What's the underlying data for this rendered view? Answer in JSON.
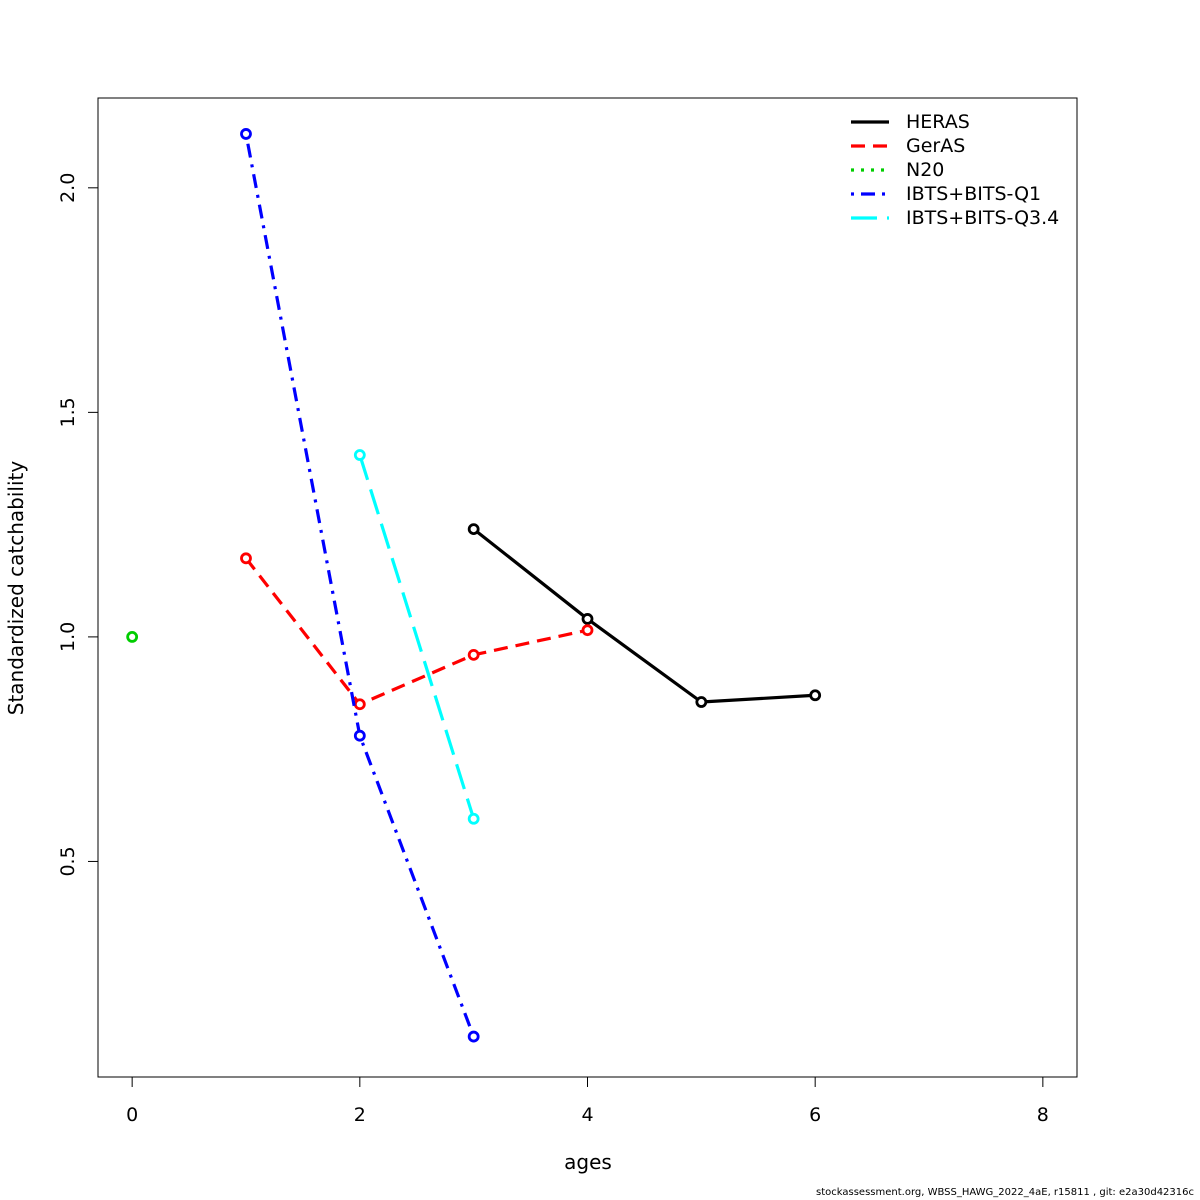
{
  "chart_data": {
    "type": "line",
    "xlabel": "ages",
    "ylabel": "Standardized catchability",
    "xlim": [
      -0.3,
      8.3
    ],
    "ylim": [
      0.02,
      2.2
    ],
    "xticks": [
      0,
      2,
      4,
      6,
      8
    ],
    "yticks": [
      0.5,
      1.0,
      1.5,
      2.0
    ],
    "xtick_labels": [
      "0",
      "2",
      "4",
      "6",
      "8"
    ],
    "ytick_labels": [
      "0.5",
      "1.0",
      "1.5",
      "2.0"
    ],
    "grid": false,
    "legend_position": "top-right",
    "series": [
      {
        "name": "HERAS",
        "color": "#000000",
        "dash": "solid",
        "x": [
          3,
          4,
          5,
          6
        ],
        "y": [
          1.24,
          1.04,
          0.855,
          0.87
        ]
      },
      {
        "name": "GerAS",
        "color": "#ff0000",
        "dash": "dashed",
        "x": [
          1,
          2,
          3,
          4
        ],
        "y": [
          1.175,
          0.85,
          0.96,
          1.015
        ]
      },
      {
        "name": "N20",
        "color": "#00cd00",
        "dash": "dotted",
        "x": [
          0
        ],
        "y": [
          1.0
        ]
      },
      {
        "name": "IBTS+BITS-Q1",
        "color": "#0000ff",
        "dash": "dotdash",
        "x": [
          1,
          2,
          3
        ],
        "y": [
          2.12,
          0.78,
          0.11
        ]
      },
      {
        "name": "IBTS+BITS-Q3.4",
        "color": "#00ffff",
        "dash": "longdash",
        "x": [
          2,
          3
        ],
        "y": [
          1.405,
          0.595
        ]
      }
    ]
  },
  "footer": "stockassessment.org, WBSS_HAWG_2022_4aE, r15811 , git: e2a30d42316c"
}
